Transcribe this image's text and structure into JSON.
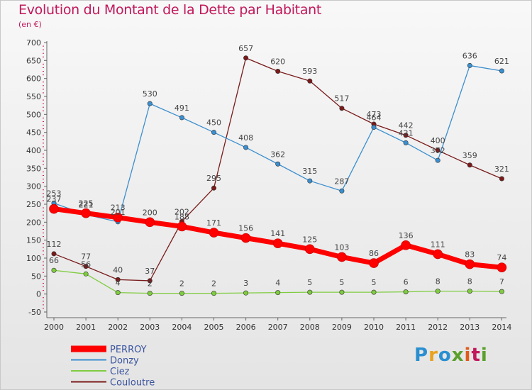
{
  "title": "Evolution du Montant de la Dette par Habitant",
  "subtitle": "(en €)",
  "logo": "Proxiti",
  "chart_data": {
    "type": "line",
    "title": "Evolution du Montant de la Dette par Habitant",
    "subtitle": "(en €)",
    "xlabel": "",
    "ylabel": "",
    "ylim": [
      -50,
      700
    ],
    "ytick_step": 50,
    "grid": false,
    "legend": "bottom-left",
    "x": [
      "2000",
      "2001",
      "2002",
      "2003",
      "2004",
      "2005",
      "2006",
      "2007",
      "2008",
      "2009",
      "2010",
      "2011",
      "2012",
      "2013",
      "2014"
    ],
    "series": [
      {
        "name": "PERROY",
        "color": "#ff0000",
        "values": [
          237,
          225,
          213,
          200,
          188,
          171,
          156,
          141,
          125,
          103,
          86,
          136,
          111,
          83,
          74
        ]
      },
      {
        "name": "Donzy",
        "color": "#3b8fcf",
        "values": [
          253,
          221,
          201,
          530,
          491,
          450,
          408,
          362,
          315,
          287,
          464,
          421,
          372,
          636,
          621
        ]
      },
      {
        "name": "Ciez",
        "color": "#80cc40",
        "values": [
          66,
          56,
          4,
          2,
          2,
          2,
          3,
          4,
          5,
          5,
          5,
          6,
          8,
          8,
          7
        ]
      },
      {
        "name": "Couloutre",
        "color": "#7a1a1a",
        "values": [
          112,
          77,
          40,
          37,
          202,
          295,
          657,
          620,
          593,
          517,
          473,
          442,
          400,
          359,
          321
        ]
      }
    ]
  }
}
